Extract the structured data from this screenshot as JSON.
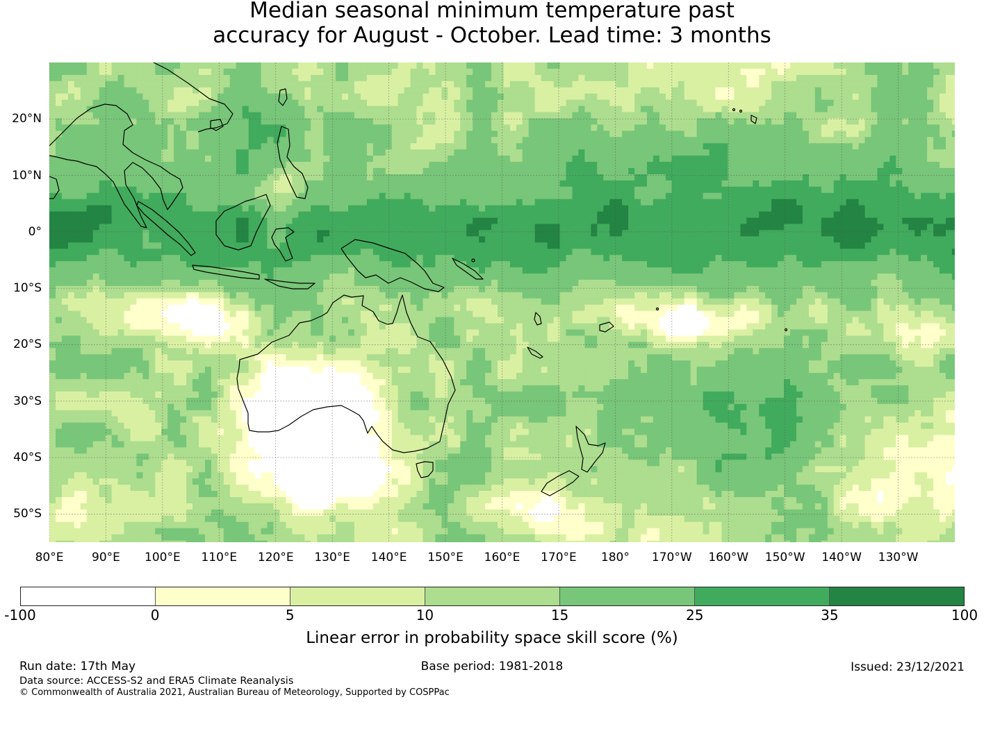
{
  "title": {
    "line1": "Median seasonal minimum temperature past",
    "line2": "accuracy for August - October. Lead time: 3 months"
  },
  "map": {
    "region": "Western and Central Pacific, Maritime Continent, Australia and New Zealand",
    "lat_range": [
      -55,
      30
    ],
    "lon_range_east": [
      80,
      240
    ],
    "lat_labels": [
      "20°N",
      "10°N",
      "0°",
      "10°S",
      "20°S",
      "30°S",
      "40°S",
      "50°S"
    ],
    "lat_values": [
      20,
      10,
      0,
      -10,
      -20,
      -30,
      -40,
      -50
    ],
    "lon_labels": [
      "80°E",
      "90°E",
      "100°E",
      "110°E",
      "120°E",
      "130°E",
      "140°E",
      "150°E",
      "160°E",
      "170°E",
      "180°",
      "170°W",
      "160°W",
      "150°W",
      "140°W",
      "130°W"
    ],
    "lon_values": [
      80,
      90,
      100,
      110,
      120,
      130,
      140,
      150,
      160,
      170,
      180,
      190,
      200,
      210,
      220,
      230
    ]
  },
  "colorbar": {
    "ticks": [
      "-100",
      "0",
      "5",
      "10",
      "15",
      "25",
      "35",
      "100"
    ],
    "colors": [
      "#ffffff",
      "#ffffcc",
      "#d9f0a3",
      "#addd8e",
      "#78c679",
      "#41ab5d",
      "#238443"
    ],
    "label": "Linear error in probability space skill score (%)"
  },
  "footer": {
    "run_date": "Run date: 17th May",
    "base_period": "Base period: 1981-2018",
    "issued": "Issued: 23/12/2021",
    "data_source": "Data source: ACCESS-S2 and ERA5 Climate Reanalysis",
    "copyright": "© Commonwealth of Australia 2021, Australian Bureau of Meteorology, Supported by COSPPac"
  }
}
